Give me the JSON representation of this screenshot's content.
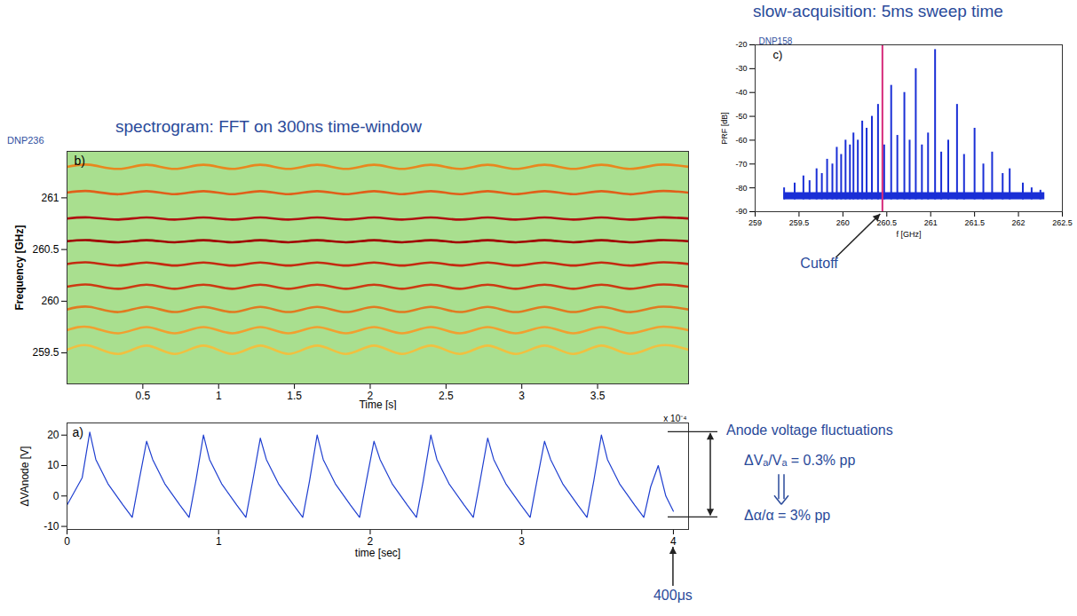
{
  "chart_data": [
    {
      "type": "bar",
      "title": "slow-acquisition: 5ms sweep time",
      "id_label": "DNP158",
      "panel_label": "c)",
      "x_label": "f [GHz]",
      "y_label": "PRF [dB]",
      "color": "#1a2fd6",
      "x": [
        259.33,
        259.45,
        259.55,
        259.62,
        259.7,
        259.76,
        259.82,
        259.88,
        259.93,
        259.98,
        260.03,
        260.08,
        260.12,
        260.17,
        260.22,
        260.27,
        260.33,
        260.4,
        260.47,
        260.55,
        260.62,
        260.7,
        260.76,
        260.83,
        260.9,
        260.97,
        261.05,
        261.12,
        261.2,
        261.3,
        261.38,
        261.5,
        261.6,
        261.7,
        261.82,
        261.9,
        262.05,
        262.15,
        262.25
      ],
      "values": [
        -80,
        -78,
        -75,
        -77,
        -72,
        -74,
        -68,
        -70,
        -63,
        -66,
        -60,
        -62,
        -57,
        -60,
        -52,
        -55,
        -50,
        -45,
        -62,
        -37,
        -58,
        -40,
        -60,
        -30,
        -62,
        -57,
        -22,
        -65,
        -60,
        -45,
        -66,
        -55,
        -70,
        -65,
        -74,
        -72,
        -78,
        -80,
        -81
      ],
      "floor": {
        "x": [
          259.33,
          262.3
        ],
        "low": -85,
        "high": -82
      },
      "cutoff": {
        "x": 260.45,
        "label": "Cutoff",
        "color": "#d62a7a"
      },
      "xlim": [
        259,
        262.5
      ],
      "xticks": [
        259,
        259.5,
        260,
        260.5,
        261,
        261.5,
        262,
        262.5
      ],
      "ylim": [
        -90,
        -20
      ],
      "yticks": [
        -90,
        -80,
        -70,
        -60,
        -50,
        -40,
        -30,
        -20
      ],
      "grid": false
    },
    {
      "type": "line",
      "title": "spectrogram: FFT on 300ns time-window",
      "id_label": "DNP236",
      "panel_label": "b)",
      "x_label": "Time [s]",
      "y_label": "Frequency [GHz]",
      "x": [
        0,
        0.15,
        0.34,
        0.525,
        0.71,
        0.9,
        1.09,
        1.275,
        1.46,
        1.65,
        1.84,
        2.025,
        2.21,
        2.4,
        2.59,
        2.775,
        2.96,
        3.15,
        3.34,
        3.525,
        3.71,
        3.9,
        4.1
      ],
      "series": [
        {
          "color": "#e8871e",
          "values": [
            261.3,
            261.32,
            261.28,
            261.32,
            261.28,
            261.32,
            261.28,
            261.32,
            261.28,
            261.32,
            261.28,
            261.32,
            261.28,
            261.32,
            261.28,
            261.32,
            261.28,
            261.32,
            261.28,
            261.32,
            261.28,
            261.32,
            261.3
          ]
        },
        {
          "color": "#e0601a",
          "values": [
            261.05,
            261.065,
            261.035,
            261.065,
            261.035,
            261.065,
            261.035,
            261.065,
            261.035,
            261.065,
            261.035,
            261.065,
            261.035,
            261.065,
            261.035,
            261.065,
            261.035,
            261.065,
            261.035,
            261.065,
            261.035,
            261.065,
            261.05
          ]
        },
        {
          "color": "#b01010",
          "values": [
            260.8,
            260.81,
            260.79,
            260.81,
            260.79,
            260.81,
            260.79,
            260.81,
            260.79,
            260.81,
            260.79,
            260.81,
            260.79,
            260.81,
            260.79,
            260.81,
            260.79,
            260.81,
            260.79,
            260.81,
            260.79,
            260.81,
            260.8
          ]
        },
        {
          "color": "#a00000",
          "values": [
            260.58,
            260.59,
            260.57,
            260.59,
            260.57,
            260.59,
            260.57,
            260.59,
            260.57,
            260.59,
            260.57,
            260.59,
            260.57,
            260.59,
            260.57,
            260.59,
            260.57,
            260.59,
            260.57,
            260.59,
            260.57,
            260.59,
            260.58
          ]
        },
        {
          "color": "#c42a10",
          "values": [
            260.36,
            260.375,
            260.345,
            260.375,
            260.345,
            260.375,
            260.345,
            260.375,
            260.345,
            260.375,
            260.345,
            260.375,
            260.345,
            260.375,
            260.345,
            260.375,
            260.345,
            260.375,
            260.345,
            260.375,
            260.345,
            260.375,
            260.36
          ]
        },
        {
          "color": "#cc3a12",
          "values": [
            260.14,
            260.16,
            260.12,
            260.16,
            260.12,
            260.16,
            260.12,
            260.16,
            260.12,
            260.16,
            260.12,
            260.16,
            260.12,
            260.16,
            260.12,
            260.16,
            260.12,
            260.16,
            260.12,
            260.16,
            260.12,
            260.16,
            260.14
          ]
        },
        {
          "color": "#e07a20",
          "values": [
            259.92,
            259.945,
            259.895,
            259.945,
            259.895,
            259.945,
            259.895,
            259.945,
            259.895,
            259.945,
            259.895,
            259.945,
            259.895,
            259.945,
            259.895,
            259.945,
            259.895,
            259.945,
            259.895,
            259.945,
            259.895,
            259.945,
            259.92
          ]
        },
        {
          "color": "#f0a030",
          "values": [
            259.72,
            259.75,
            259.69,
            259.75,
            259.69,
            259.75,
            259.69,
            259.75,
            259.69,
            259.75,
            259.69,
            259.75,
            259.69,
            259.75,
            259.69,
            259.75,
            259.69,
            259.75,
            259.69,
            259.75,
            259.69,
            259.75,
            259.72
          ]
        },
        {
          "color": "#f0c040",
          "values": [
            259.53,
            259.57,
            259.49,
            259.57,
            259.49,
            259.57,
            259.49,
            259.57,
            259.49,
            259.57,
            259.49,
            259.57,
            259.49,
            259.57,
            259.49,
            259.57,
            259.49,
            259.57,
            259.49,
            259.57,
            259.49,
            259.57,
            259.53
          ]
        }
      ],
      "xlim": [
        0,
        4.1
      ],
      "xticks": [
        0.5,
        1,
        1.5,
        2,
        2.5,
        3,
        3.5
      ],
      "ylim": [
        259.2,
        261.45
      ],
      "yticks": [
        259.5,
        260,
        260.5,
        261
      ],
      "grid": false
    },
    {
      "type": "line",
      "panel_label": "a)",
      "x_label": "time [sec]",
      "y_label": "ΔVAnode [V]",
      "x_multiplier": "x 10⁻⁴",
      "color": "#1f3fd0",
      "x": [
        0,
        0.1,
        0.15,
        0.19,
        0.27,
        0.37,
        0.43,
        0.475,
        0.525,
        0.565,
        0.645,
        0.745,
        0.805,
        0.85,
        0.9,
        0.94,
        1.02,
        1.12,
        1.18,
        1.225,
        1.275,
        1.315,
        1.395,
        1.495,
        1.555,
        1.6,
        1.65,
        1.69,
        1.77,
        1.87,
        1.93,
        1.975,
        2.025,
        2.065,
        2.145,
        2.245,
        2.305,
        2.35,
        2.4,
        2.44,
        2.52,
        2.62,
        2.68,
        2.725,
        2.775,
        2.815,
        2.895,
        2.995,
        3.055,
        3.1,
        3.15,
        3.19,
        3.27,
        3.37,
        3.43,
        3.475,
        3.525,
        3.565,
        3.645,
        3.745,
        3.805,
        3.85,
        3.9,
        3.95,
        4.0
      ],
      "values": [
        -3,
        6,
        21,
        12,
        4,
        -3,
        -7,
        5,
        18,
        12,
        4,
        -3,
        -7,
        5,
        20,
        12,
        4,
        -3,
        -7,
        5,
        19,
        12,
        4,
        -3,
        -7,
        5,
        20,
        12,
        4,
        -3,
        -7,
        5,
        18,
        12,
        4,
        -3,
        -7,
        5,
        20,
        12,
        4,
        -3,
        -7,
        5,
        19,
        12,
        4,
        -3,
        -7,
        5,
        18,
        12,
        4,
        -3,
        -7,
        5,
        20,
        12,
        4,
        -3,
        -7,
        3,
        10,
        0,
        -5
      ],
      "xlim": [
        0,
        4.1
      ],
      "xticks": [
        0,
        1,
        2,
        3,
        4
      ],
      "ylim": [
        -11,
        24
      ],
      "yticks": [
        -10,
        0,
        10,
        20
      ],
      "grid": false,
      "annotations": {
        "heading": "Anode voltage fluctuations",
        "voltage_ratio": "ΔVₐ/Vₐ = 0.3% pp",
        "alpha_ratio": "Δα/α = 3% pp",
        "window_label": "400μs",
        "window_x": 4
      }
    }
  ]
}
